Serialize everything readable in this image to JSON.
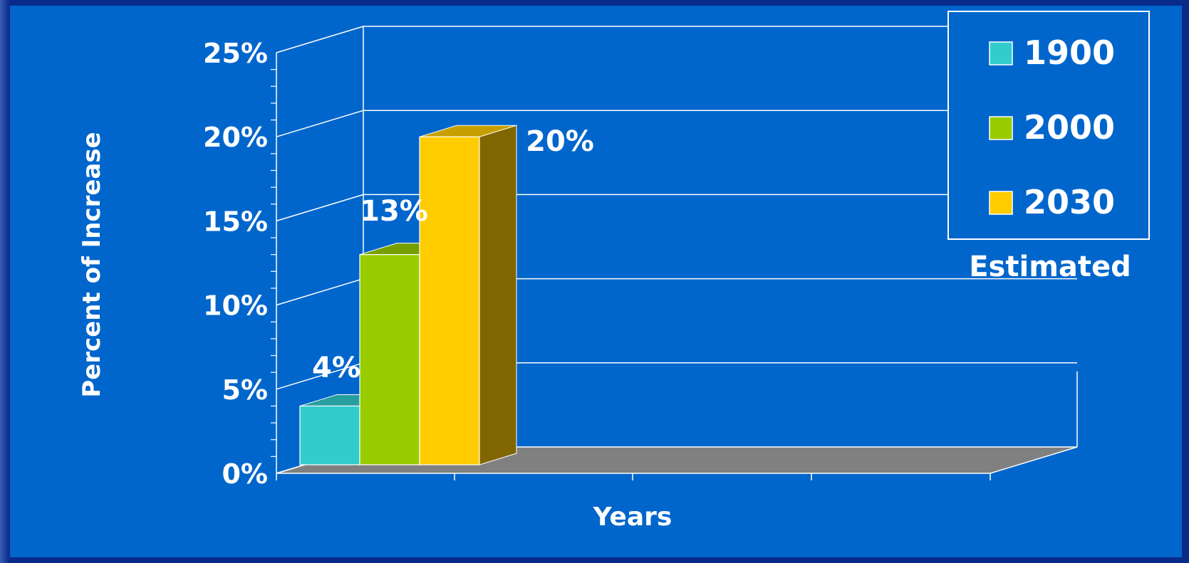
{
  "chart_data": {
    "type": "bar",
    "title": "",
    "xlabel": "Years",
    "ylabel": "Percent of Increase",
    "ylim": [
      0,
      25
    ],
    "y_ticks": [
      "0%",
      "5%",
      "10%",
      "15%",
      "20%",
      "25%"
    ],
    "grid": true,
    "legend_position": "top-right",
    "series": [
      {
        "name": "1900",
        "value": 4,
        "label": "4%",
        "color": "#33cccc"
      },
      {
        "name": "2000",
        "value": 13,
        "label": "13%",
        "color": "#99cc00"
      },
      {
        "name": "2030",
        "value": 20,
        "label": "20%",
        "color": "#ffcc00"
      }
    ],
    "annotation": "Estimated"
  },
  "colors": {
    "background": "#0066cc",
    "floor": "#808080",
    "grid": "#ffffff"
  }
}
